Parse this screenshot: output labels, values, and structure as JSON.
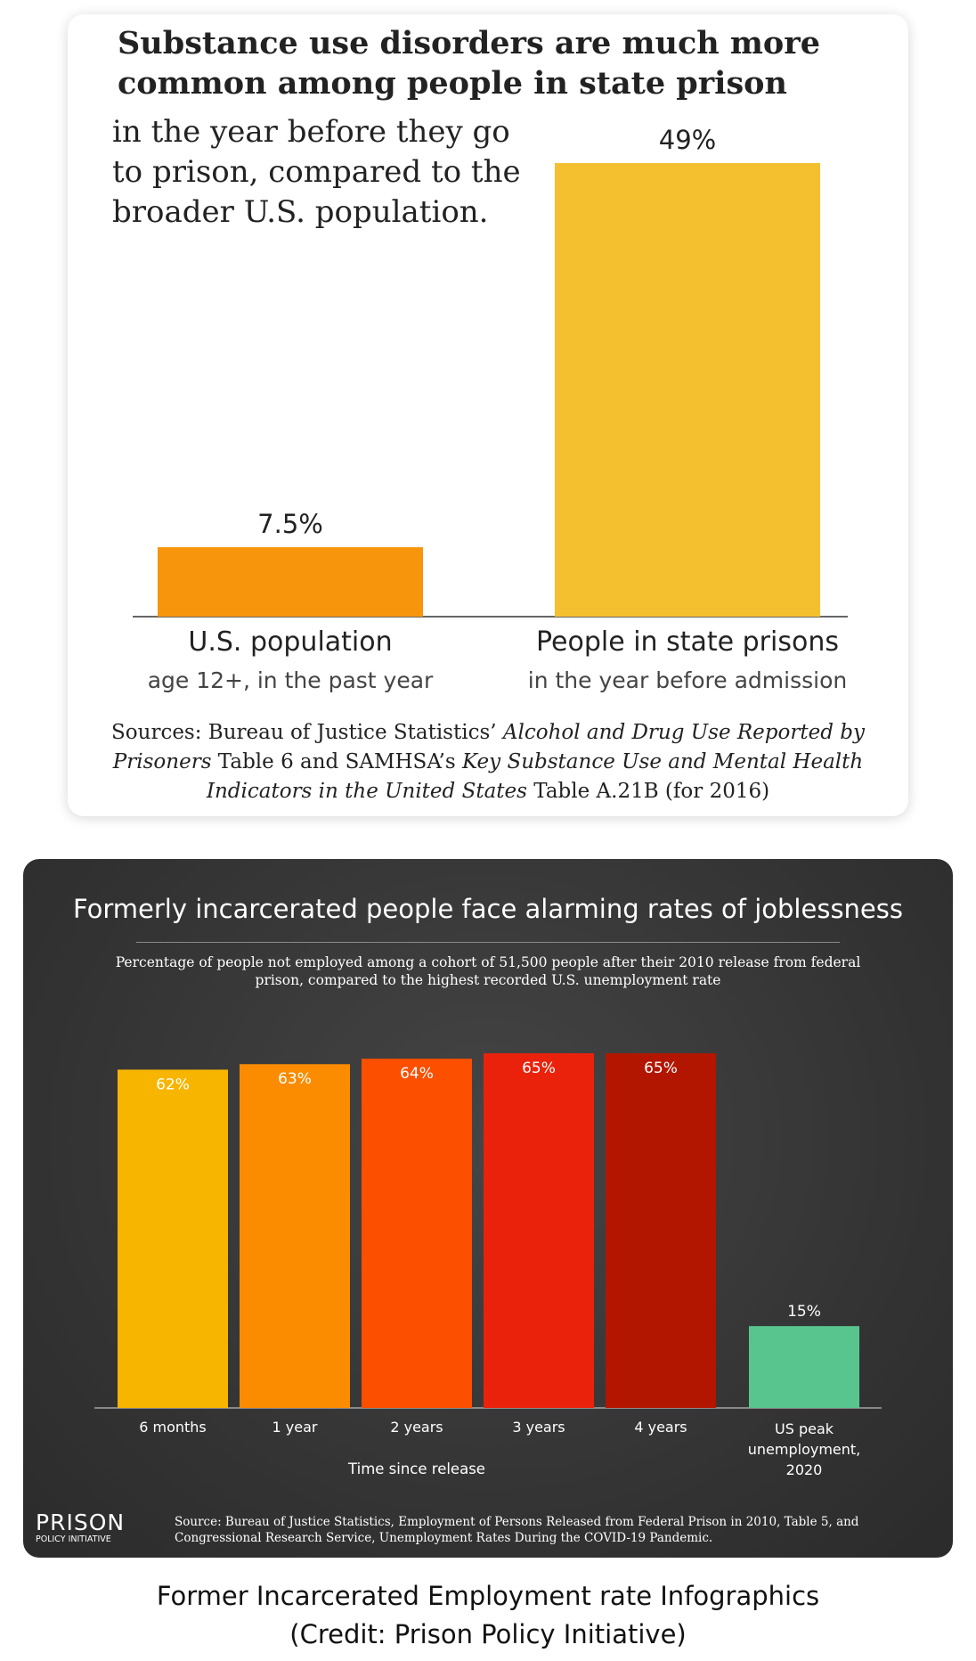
{
  "charts": {
    "substance": {
      "title": "Substance use disorders are much more common among people in state prison",
      "subtitle": "in the year before they go to prison, compared to the broader U.S. population.",
      "sources": {
        "p1": "Sources: Bureau of Justice Statistics’ ",
        "p2": "Alcohol and Drug Use Reported by Prisoners",
        "p3": " Table 6 and SAMHSA’s ",
        "p4": "Key Substance Use and Mental Health Indicators in the United States",
        "p5": " Table A.21B (for 2016)"
      }
    },
    "joblessness": {
      "title": "Formerly incarcerated people face alarming rates of joblessness",
      "subtitle": "Percentage of people not employed among a cohort of 51,500 people after their 2010 release from federal prison, compared to the highest recorded U.S. unemployment rate",
      "source": "Source: Bureau of Justice Statistics, Employment of Persons Released from Federal Prison in 2010, Table 5, and Congressional Research Service, Unemployment Rates During the COVID-19 Pandemic.",
      "logo": {
        "main": "PRISON",
        "sub": "POLICY INITIATIVE"
      }
    }
  },
  "caption": {
    "line1": "Former Incarcerated Employment rate Infographics",
    "line2": "(Credit: Prison Policy Initiative)"
  },
  "chart_data": [
    {
      "type": "bar",
      "title": "Substance use disorders are much more common among people in state prison",
      "subtitle": "in the year before they go to prison, compared to the broader U.S. population.",
      "categories": [
        "U.S. population",
        "People in state prisons"
      ],
      "category_sublabels": [
        "age 12+, in the past year",
        "in the year before admission"
      ],
      "values": [
        7.5,
        49
      ],
      "value_labels": [
        "7.5%",
        "49%"
      ],
      "colors": [
        "#f7960d",
        "#f5c02f"
      ],
      "ylim": [
        0,
        49
      ],
      "grid": false,
      "legend": "none"
    },
    {
      "type": "bar",
      "title": "Formerly incarcerated people face alarming rates of joblessness",
      "subtitle": "Percentage of people not employed among a cohort of 51,500 people after their 2010 release from federal prison, compared to the highest recorded U.S. unemployment rate",
      "categories": [
        "6 months",
        "1 year",
        "2 years",
        "3 years",
        "4 years",
        "US peak unemployment, 2020"
      ],
      "values": [
        62,
        63,
        64,
        65,
        65,
        15
      ],
      "value_labels": [
        "62%",
        "63%",
        "64%",
        "65%",
        "65%",
        "15%"
      ],
      "colors": [
        "#f7b500",
        "#fb8c00",
        "#fc4f00",
        "#ea220c",
        "#b31600",
        "#58c58f"
      ],
      "xlabel": "Time since release",
      "ylabel": "",
      "ylim": [
        0,
        65
      ],
      "grid": false,
      "legend": "none"
    }
  ]
}
